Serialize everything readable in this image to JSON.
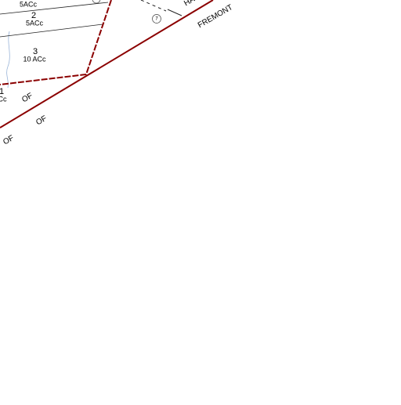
{
  "map": {
    "labels": [
      {
        "text": "5ACc"
      },
      {
        "text": "2"
      },
      {
        "text": "5ACc"
      },
      {
        "text": "3"
      },
      {
        "text": "10 ACc"
      },
      {
        "text": "1"
      },
      {
        "text": "Cc"
      },
      {
        "text": "OF"
      },
      {
        "text": "OF"
      },
      {
        "text": "OF"
      },
      {
        "text": "HA"
      },
      {
        "text": "FREMONT"
      },
      {
        "text": "7"
      }
    ]
  }
}
